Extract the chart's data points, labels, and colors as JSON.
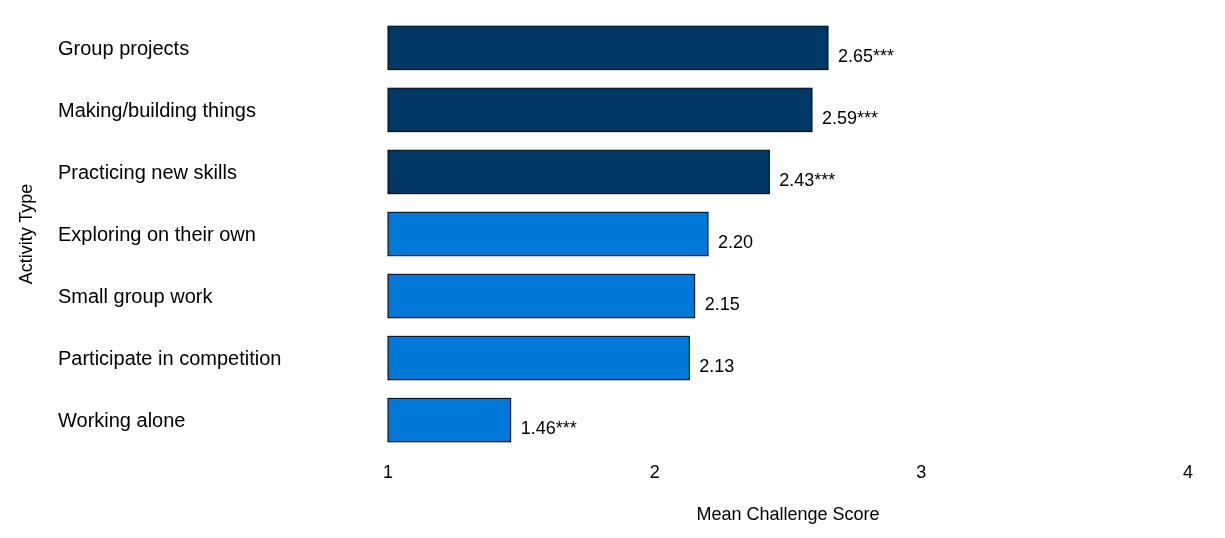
{
  "chart_data": {
    "type": "bar",
    "orientation": "horizontal",
    "xlabel": "Mean Challenge Score",
    "ylabel": "Activity Type",
    "categories": [
      "Group projects",
      "Making/building things",
      "Practicing new skills",
      "Exploring on their own",
      "Small group work",
      "Participate in competition",
      "Working alone"
    ],
    "values": [
      2.65,
      2.59,
      2.43,
      2.2,
      2.15,
      2.13,
      1.46
    ],
    "colors": [
      "#003865",
      "#003865",
      "#003865",
      "#0078d7",
      "#0078d7",
      "#0078d7",
      "#0078d7"
    ],
    "value_labels": [
      "2.65***",
      "2.59***",
      "2.43***",
      "2.20",
      "2.15",
      "2.13",
      "1.46***"
    ],
    "xlim": [
      1,
      4
    ],
    "xticks": [
      1,
      2,
      3,
      4
    ],
    "grid": false
  }
}
